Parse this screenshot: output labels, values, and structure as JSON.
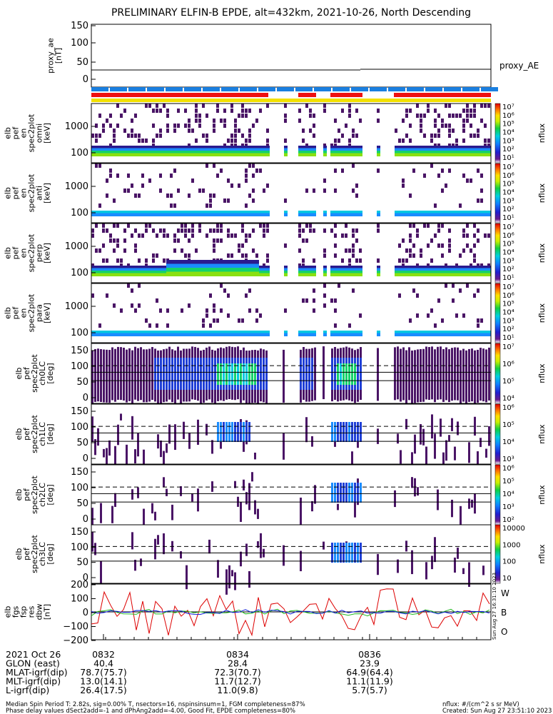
{
  "title": "PRELIMINARY ELFIN-B EPDE, alt=432km, 2021-10-26, North Descending",
  "colors": {
    "bar_blue": "#1a7fe0",
    "bar_red": "#ee1111",
    "bar_yellow": "#f2e000",
    "trace_W": "#dd0000",
    "trace_B": "#22bb22",
    "trace_O": "#1020dd",
    "panel_fill": "#3a1455"
  },
  "panels": {
    "ae": {
      "ylabel_lines": [
        "proxy_ae",
        "[nT]"
      ],
      "ticks": [
        "150",
        "100",
        "50",
        "0"
      ],
      "right_label": "proxy_AE"
    },
    "energy": [
      {
        "ylabel_lines": [
          "elb",
          "pef",
          "en",
          "spec2plot",
          "omni",
          "[keV]"
        ],
        "ticks": [
          "1000",
          "100"
        ],
        "cbar_ticks": [
          "10⁷",
          "10⁶",
          "10⁵",
          "10⁴",
          "10³",
          "10²",
          "10¹"
        ],
        "cbar_label": "nflux"
      },
      {
        "ylabel_lines": [
          "elb",
          "pef",
          "en",
          "spec2plot",
          "anti",
          "[keV]"
        ],
        "ticks": [
          "1000",
          "100"
        ],
        "cbar_ticks": [
          "10⁷",
          "10⁶",
          "10⁵",
          "10⁴",
          "10³",
          "10²",
          "10¹"
        ],
        "cbar_label": "nflux"
      },
      {
        "ylabel_lines": [
          "elb",
          "pef",
          "en",
          "spec2plot",
          "perp",
          "[keV]"
        ],
        "ticks": [
          "1000",
          "100"
        ],
        "cbar_ticks": [
          "10⁷",
          "10⁶",
          "10⁵",
          "10⁴",
          "10³",
          "10²",
          "10¹"
        ],
        "cbar_label": "nflux"
      },
      {
        "ylabel_lines": [
          "elb",
          "pef",
          "en",
          "spec2plot",
          "para",
          "[keV]"
        ],
        "ticks": [
          "1000",
          "100"
        ],
        "cbar_ticks": [
          "10⁷",
          "10⁶",
          "10⁵",
          "10⁴",
          "10³",
          "10²",
          "10¹"
        ],
        "cbar_label": "nflux"
      }
    ],
    "pitch": [
      {
        "ylabel_lines": [
          "elb",
          "pef",
          "spec2plot",
          "ch0LC",
          "[deg]"
        ],
        "ticks": [
          "150",
          "100",
          "50",
          "0"
        ],
        "cbar_ticks": [
          "10⁷",
          "10⁶",
          "10⁵",
          "10⁴"
        ],
        "cbar_label": "nflux"
      },
      {
        "ylabel_lines": [
          "elb",
          "pef",
          "spec2plot",
          "ch1LC",
          "[deg]"
        ],
        "ticks": [
          "150",
          "100",
          "50",
          "0"
        ],
        "cbar_ticks": [
          "10⁶",
          "10⁵",
          "10⁴",
          "10³"
        ],
        "cbar_label": "nflux"
      },
      {
        "ylabel_lines": [
          "elb",
          "pef",
          "spec2plot",
          "ch2LC",
          "[deg]"
        ],
        "ticks": [
          "150",
          "100",
          "50",
          "0"
        ],
        "cbar_ticks": [
          "10⁶",
          "10⁵",
          "10⁴",
          "10³",
          "10²"
        ],
        "cbar_label": "nflux"
      },
      {
        "ylabel_lines": [
          "elb",
          "pef",
          "spec2plot",
          "ch3LC",
          "[deg]"
        ],
        "ticks": [
          "150",
          "100",
          "50",
          "0"
        ],
        "cbar_ticks": [
          "10000",
          "1000",
          "100",
          "10"
        ],
        "cbar_label": "nflux"
      }
    ],
    "mag": {
      "ylabel_lines": [
        "elb",
        "fgs",
        "fsp",
        "res",
        "dbw",
        "[nT]"
      ],
      "ticks": [
        "200",
        "100",
        "0",
        "−100",
        "−200"
      ],
      "legend": [
        "W",
        "B",
        "O"
      ],
      "stamp": "Sun Aug 27 16:31:10 2023"
    }
  },
  "xaxis": {
    "ticks": [
      "0832",
      "0834",
      "0836"
    ],
    "rows": [
      {
        "label": "2021 Oct 26",
        "values": [
          "",
          "",
          ""
        ]
      },
      {
        "label": "GLON (east)",
        "values": [
          "40.4",
          "28.4",
          "23.9"
        ]
      },
      {
        "label": "MLAT-igrf(dip)",
        "values": [
          "78.7(75.7)",
          "72.3(70.7)",
          "64.9(64.4)"
        ]
      },
      {
        "label": "MLT-igrf(dip)",
        "values": [
          "13.0(14.1)",
          "11.7(12.7)",
          "11.1(11.9)"
        ]
      },
      {
        "label": "L-igrf(dip)",
        "values": [
          "26.4(17.5)",
          "11.0(9.8)",
          "5.7(5.7)"
        ]
      }
    ]
  },
  "footer": {
    "line1": "Median Spin Period T: 2.82s, sig=0.00% T, nsectors=16, nspinsinsum=1, FGM completeness=87%",
    "line2": "Phase delay values dSect2add=-1 and dPhAng2add=-4.00, Good Fit, EPDE completeness=80%",
    "units": "nflux: #/(cm^2 s sr MeV)",
    "created": "Created: Sun Aug 27 23:51:10 2023"
  },
  "chart_data": {
    "type": "line",
    "title": "PRELIMINARY ELFIN-B EPDE, alt=432km, 2021-10-26, North Descending",
    "x_ticks": [
      "0832",
      "0834",
      "0836"
    ],
    "proxy_ae": {
      "ylim": [
        0,
        150
      ],
      "values_start": 35,
      "values_end": 38
    },
    "energy_spectrograms": {
      "ylabel_unit": "keV",
      "y_scale": "log",
      "channels": [
        "omni",
        "anti",
        "perp",
        "para"
      ]
    },
    "pitch_spectrograms": {
      "ylim": [
        0,
        180
      ],
      "channels": [
        "ch0LC",
        "ch1LC",
        "ch2LC",
        "ch3LC"
      ]
    },
    "dbw": {
      "ylim": [
        -200,
        200
      ],
      "series": [
        {
          "name": "W"
        },
        {
          "name": "B"
        },
        {
          "name": "O"
        }
      ]
    }
  }
}
